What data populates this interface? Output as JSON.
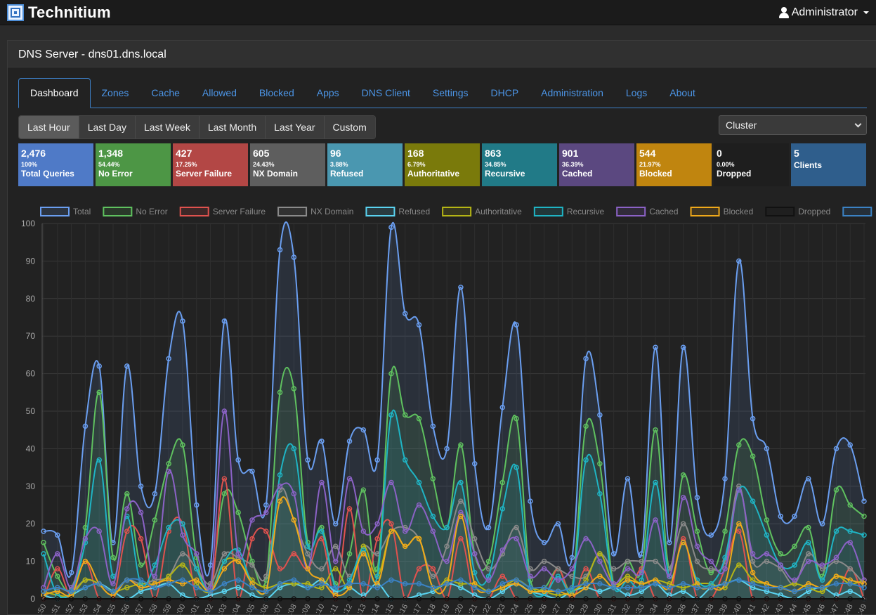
{
  "app": {
    "brand": "Technitium",
    "user": "Administrator"
  },
  "panel": {
    "title": "DNS Server - dns01.dns.local"
  },
  "tabs": [
    "Dashboard",
    "Zones",
    "Cache",
    "Allowed",
    "Blocked",
    "Apps",
    "DNS Client",
    "Settings",
    "DHCP",
    "Administration",
    "Logs",
    "About"
  ],
  "ranges": [
    "Last Hour",
    "Last Day",
    "Last Week",
    "Last Month",
    "Last Year",
    "Custom"
  ],
  "node_select": {
    "value": "Cluster"
  },
  "stats": [
    {
      "value": "2,476",
      "percent": "100%",
      "label": "Total Queries",
      "color": "#4f7ac7"
    },
    {
      "value": "1,348",
      "percent": "54.44%",
      "label": "No Error",
      "color": "#4d9645"
    },
    {
      "value": "427",
      "percent": "17.25%",
      "label": "Server Failure",
      "color": "#b34745"
    },
    {
      "value": "605",
      "percent": "24.43%",
      "label": "NX Domain",
      "color": "#5e5e5e"
    },
    {
      "value": "96",
      "percent": "3.88%",
      "label": "Refused",
      "color": "#4a97b0"
    },
    {
      "value": "168",
      "percent": "6.79%",
      "label": "Authoritative",
      "color": "#7a7a0b"
    },
    {
      "value": "863",
      "percent": "34.85%",
      "label": "Recursive",
      "color": "#217a87"
    },
    {
      "value": "901",
      "percent": "36.39%",
      "label": "Cached",
      "color": "#5b4880"
    },
    {
      "value": "544",
      "percent": "21.97%",
      "label": "Blocked",
      "color": "#c0850f"
    },
    {
      "value": "0",
      "percent": "0.00%",
      "label": "Dropped",
      "color": "#1e1e1e"
    },
    {
      "value": "5",
      "percent": "",
      "label": "Clients",
      "color": "#2f5e8c"
    }
  ],
  "chart_data": {
    "type": "line",
    "ylim": [
      0,
      100
    ],
    "y_ticks": [
      0,
      10,
      20,
      30,
      40,
      50,
      60,
      70,
      80,
      90,
      100
    ],
    "legend_position": "top",
    "categories": [
      ":50",
      ":51",
      ":52",
      ":53",
      ":54",
      ":55",
      ":56",
      ":57",
      ":58",
      ":59",
      ":00",
      ":01",
      ":02",
      ":03",
      ":04",
      ":05",
      ":06",
      ":07",
      ":08",
      ":09",
      ":10",
      ":11",
      ":12",
      ":13",
      ":14",
      ":15",
      ":16",
      ":17",
      ":18",
      ":19",
      ":20",
      ":21",
      ":22",
      ":23",
      ":24",
      ":25",
      ":26",
      ":27",
      ":28",
      ":29",
      ":30",
      ":31",
      ":32",
      ":33",
      ":34",
      ":35",
      ":36",
      ":37",
      ":38",
      ":39",
      ":40",
      ":41",
      ":42",
      ":43",
      ":44",
      ":45",
      ":46",
      ":47",
      ":48",
      ":49"
    ],
    "series": [
      {
        "name": "Total",
        "color": "#6a9ef0",
        "fill": true,
        "values": [
          18,
          17,
          7,
          46,
          62,
          15,
          62,
          30,
          28,
          64,
          74,
          25,
          9,
          74,
          37,
          34,
          25,
          93,
          91,
          37,
          42,
          20,
          42,
          45,
          37,
          99,
          76,
          73,
          46,
          40,
          83,
          36,
          19,
          51,
          73,
          26,
          15,
          20,
          11,
          64,
          49,
          12,
          32,
          12,
          67,
          15,
          67,
          27,
          17,
          32,
          90,
          48,
          40,
          22,
          22,
          32,
          20,
          40,
          41,
          26
        ]
      },
      {
        "name": "No Error",
        "color": "#5fc15f",
        "fill": true,
        "values": [
          15,
          6,
          3,
          19,
          55,
          11,
          28,
          9,
          21,
          36,
          41,
          11,
          4,
          28,
          23,
          10,
          5,
          55,
          56,
          15,
          19,
          4,
          12,
          29,
          8,
          60,
          49,
          48,
          32,
          19,
          41,
          12,
          10,
          31,
          48,
          5,
          3,
          8,
          3,
          46,
          36,
          4,
          10,
          8,
          45,
          8,
          33,
          18,
          7,
          18,
          41,
          38,
          21,
          12,
          14,
          19,
          6,
          29,
          25,
          22
        ]
      },
      {
        "name": "Server Failure",
        "color": "#e0524e",
        "fill": false,
        "values": [
          0,
          8,
          1,
          10,
          0,
          0,
          18,
          16,
          0,
          18,
          20,
          0,
          0,
          32,
          0,
          16,
          18,
          8,
          12,
          8,
          16,
          0,
          24,
          0,
          16,
          20,
          0,
          8,
          8,
          0,
          16,
          0,
          0,
          6,
          0,
          0,
          0,
          8,
          0,
          8,
          0,
          0,
          0,
          8,
          0,
          0,
          16,
          0,
          0,
          8,
          18,
          0,
          0,
          0,
          0,
          0,
          0,
          0,
          8,
          0
        ]
      },
      {
        "name": "NX Domain",
        "color": "#8a8a8a",
        "fill": true,
        "values": [
          2,
          3,
          2,
          5,
          4,
          2,
          5,
          4,
          5,
          6,
          12,
          8,
          4,
          12,
          11,
          9,
          6,
          29,
          21,
          12,
          8,
          14,
          6,
          14,
          12,
          18,
          19,
          16,
          6,
          14,
          26,
          16,
          8,
          12,
          19,
          8,
          10,
          8,
          6,
          6,
          12,
          8,
          10,
          10,
          10,
          8,
          20,
          10,
          8,
          10,
          30,
          10,
          10,
          8,
          4,
          12,
          8,
          10,
          8,
          4
        ]
      },
      {
        "name": "Refused",
        "color": "#5ad3f0",
        "fill": false,
        "values": [
          1,
          0,
          1,
          3,
          4,
          2,
          0,
          2,
          3,
          4,
          1,
          0,
          1,
          2,
          3,
          1,
          0,
          3,
          4,
          3,
          5,
          2,
          3,
          1,
          4,
          0,
          0,
          1,
          2,
          4,
          3,
          1,
          0,
          2,
          4,
          2,
          1,
          0,
          2,
          3,
          2,
          3,
          1,
          2,
          4,
          1,
          2,
          0,
          3,
          4,
          5,
          3,
          2,
          1,
          0,
          2,
          3,
          1,
          2,
          0
        ]
      },
      {
        "name": "Authoritative",
        "color": "#b5b515",
        "fill": false,
        "values": [
          2,
          1,
          1,
          5,
          4,
          2,
          3,
          4,
          4,
          6,
          9,
          4,
          2,
          10,
          10,
          5,
          3,
          4,
          4,
          4,
          3,
          8,
          3,
          14,
          6,
          18,
          14,
          16,
          3,
          5,
          4,
          4,
          2,
          3,
          5,
          3,
          2,
          1,
          2,
          5,
          12,
          4,
          6,
          4,
          5,
          4,
          3,
          4,
          4,
          3,
          9,
          5,
          4,
          3,
          4,
          3,
          2,
          6,
          4,
          5
        ]
      },
      {
        "name": "Recursive",
        "color": "#1fb4c4",
        "fill": true,
        "values": [
          12,
          1,
          2,
          15,
          37,
          6,
          22,
          4,
          9,
          19,
          20,
          8,
          2,
          10,
          13,
          4,
          2,
          33,
          40,
          14,
          18,
          3,
          5,
          13,
          6,
          49,
          37,
          31,
          22,
          19,
          31,
          7,
          6,
          24,
          35,
          3,
          1,
          6,
          2,
          37,
          28,
          3,
          5,
          5,
          31,
          6,
          15,
          5,
          4,
          11,
          29,
          26,
          17,
          9,
          9,
          15,
          5,
          18,
          18,
          17
        ]
      },
      {
        "name": "Cached",
        "color": "#8b62c6",
        "fill": false,
        "values": [
          3,
          12,
          3,
          16,
          18,
          4,
          24,
          23,
          6,
          34,
          17,
          12,
          3,
          50,
          12,
          21,
          23,
          30,
          28,
          8,
          31,
          10,
          32,
          18,
          20,
          31,
          18,
          25,
          18,
          10,
          23,
          12,
          5,
          13,
          16,
          6,
          8,
          5,
          8,
          16,
          10,
          4,
          8,
          7,
          21,
          6,
          27,
          14,
          10,
          8,
          29,
          12,
          12,
          9,
          5,
          10,
          9,
          11,
          15,
          5
        ]
      },
      {
        "name": "Blocked",
        "color": "#f0a91a",
        "fill": false,
        "values": [
          1,
          2,
          1,
          10,
          4,
          1,
          5,
          3,
          4,
          5,
          4,
          5,
          2,
          8,
          10,
          4,
          2,
          26,
          21,
          8,
          5,
          1,
          3,
          12,
          4,
          18,
          14,
          16,
          3,
          4,
          22,
          4,
          2,
          3,
          4,
          2,
          2,
          2,
          1,
          3,
          6,
          3,
          5,
          4,
          5,
          3,
          15,
          4,
          3,
          4,
          20,
          7,
          4,
          3,
          2,
          4,
          3,
          6,
          5,
          4
        ]
      },
      {
        "name": "Dropped",
        "color": "#111111",
        "fill": false,
        "values": [
          0,
          0,
          0,
          0,
          0,
          0,
          0,
          0,
          0,
          0,
          0,
          0,
          0,
          0,
          0,
          0,
          0,
          0,
          0,
          0,
          0,
          0,
          0,
          0,
          0,
          0,
          0,
          0,
          0,
          0,
          0,
          0,
          0,
          0,
          0,
          0,
          0,
          0,
          0,
          0,
          0,
          0,
          0,
          0,
          0,
          0,
          0,
          0,
          0,
          0,
          0,
          0,
          0,
          0,
          0,
          0,
          0,
          0,
          0,
          0
        ]
      },
      {
        "name": "Clients",
        "color": "#3b82c4",
        "fill": false,
        "values": [
          2,
          3,
          2,
          3,
          4,
          2,
          5,
          5,
          3,
          4,
          5,
          3,
          2,
          4,
          5,
          3,
          2,
          4,
          5,
          3,
          4,
          3,
          4,
          4,
          3,
          5,
          4,
          4,
          3,
          4,
          5,
          3,
          2,
          4,
          5,
          3,
          3,
          2,
          3,
          4,
          4,
          3,
          3,
          3,
          4,
          3,
          4,
          3,
          3,
          4,
          5,
          4,
          3,
          3,
          2,
          3,
          3,
          4,
          4,
          3
        ]
      }
    ]
  }
}
